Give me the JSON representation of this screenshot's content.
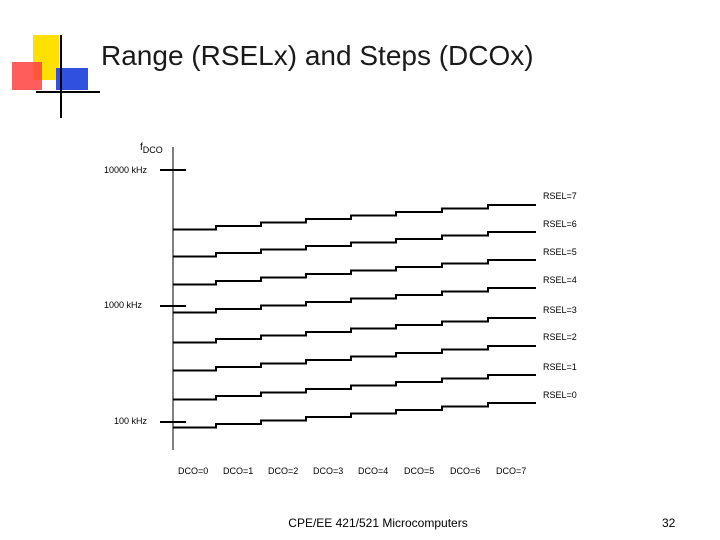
{
  "slide": {
    "title": "Range (RSELx) and Steps (DCOx)",
    "footer": "CPE/EE 421/521 Microcomputers",
    "page_number": "32"
  },
  "diagram": {
    "y_axis_label_main": "f",
    "y_axis_label_sub": "DCO",
    "freq_labels": [
      "10000 kHz",
      "1000 kHz",
      "100 kHz"
    ],
    "rsel_labels": [
      "RSEL=7",
      "RSEL=6",
      "RSEL=5",
      "RSEL=4",
      "RSEL=3",
      "RSEL=2",
      "RSEL=1",
      "RSEL=0"
    ],
    "dco_labels": [
      "DCO=0",
      "DCO=1",
      "DCO=2",
      "DCO=3",
      "DCO=4",
      "DCO=5",
      "DCO=6",
      "DCO=7"
    ],
    "colors": {
      "logo_yellow": "#FFE000",
      "logo_red": "#FF4040",
      "logo_blue": "#3050E0",
      "line": "#000000"
    }
  }
}
